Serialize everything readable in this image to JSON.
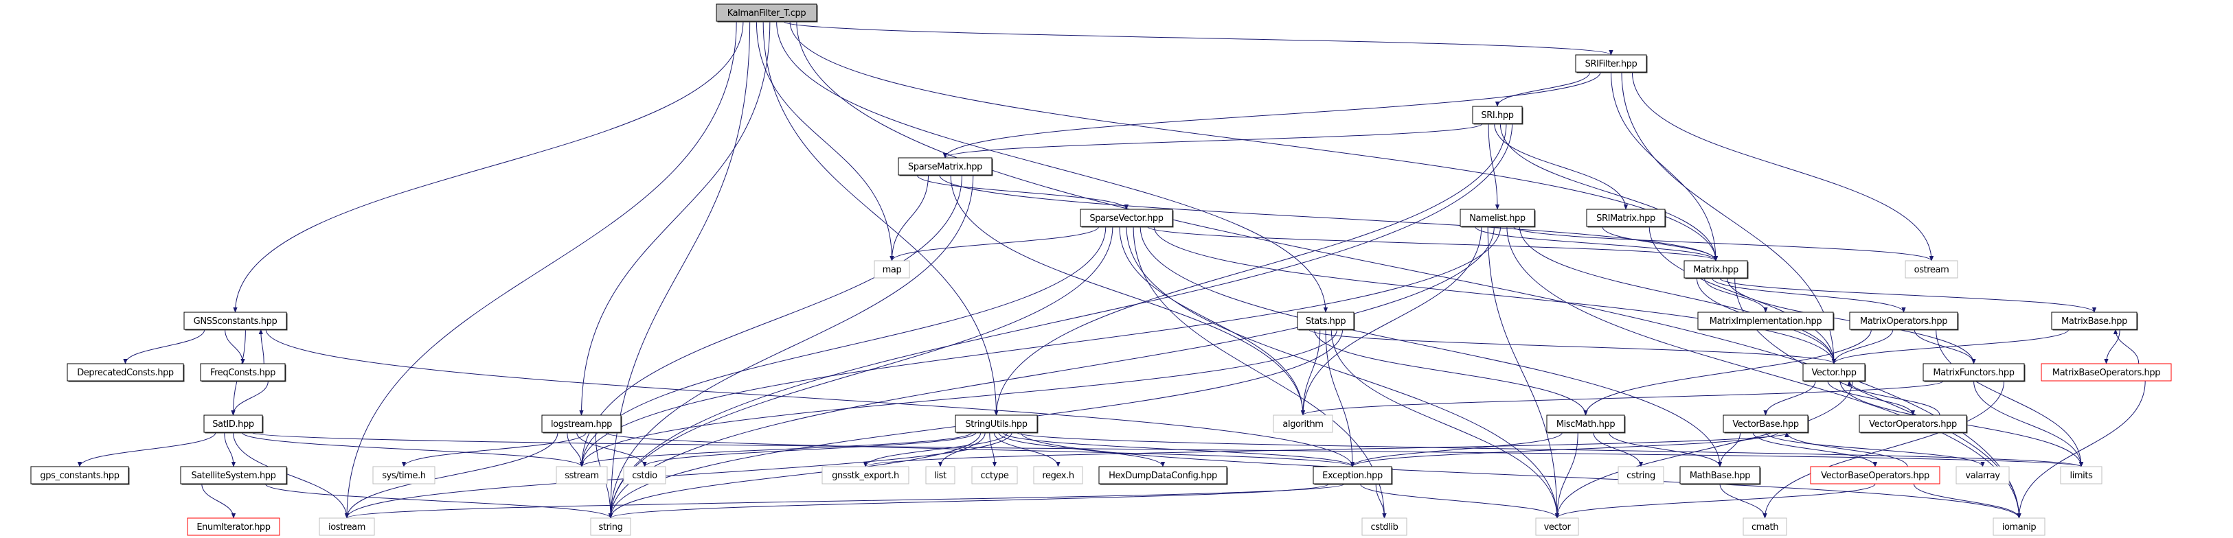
{
  "colors": {
    "edge": "#191970",
    "node_border": "#000000",
    "node_shadow": "#404040",
    "external_border": "#bfbfbf",
    "external_text": "#000000",
    "missing_border": "#ff0000",
    "root_fill": "#bfbfbf"
  },
  "nodes": [
    {
      "id": "kalman",
      "label": "KalmanFilter_T.cpp",
      "kind": "root"
    },
    {
      "id": "srifilter",
      "label": "SRIFilter.hpp",
      "kind": "normal"
    },
    {
      "id": "sri",
      "label": "SRI.hpp",
      "kind": "normal"
    },
    {
      "id": "sparsematrix",
      "label": "SparseMatrix.hpp",
      "kind": "normal"
    },
    {
      "id": "sparsevector",
      "label": "SparseVector.hpp",
      "kind": "normal"
    },
    {
      "id": "namelist",
      "label": "Namelist.hpp",
      "kind": "normal"
    },
    {
      "id": "srimatrix",
      "label": "SRIMatrix.hpp",
      "kind": "normal"
    },
    {
      "id": "matrix",
      "label": "Matrix.hpp",
      "kind": "normal"
    },
    {
      "id": "ostream",
      "label": "ostream",
      "kind": "external"
    },
    {
      "id": "map",
      "label": "map",
      "kind": "external"
    },
    {
      "id": "gnssconstants",
      "label": "GNSSconstants.hpp",
      "kind": "normal"
    },
    {
      "id": "stats",
      "label": "Stats.hpp",
      "kind": "normal"
    },
    {
      "id": "matriximpl",
      "label": "MatrixImplementation.hpp",
      "kind": "normal"
    },
    {
      "id": "matrixops",
      "label": "MatrixOperators.hpp",
      "kind": "normal"
    },
    {
      "id": "matrixbase",
      "label": "MatrixBase.hpp",
      "kind": "normal"
    },
    {
      "id": "deprecated",
      "label": "DeprecatedConsts.hpp",
      "kind": "normal"
    },
    {
      "id": "freqconsts",
      "label": "FreqConsts.hpp",
      "kind": "normal"
    },
    {
      "id": "vector_hpp",
      "label": "Vector.hpp",
      "kind": "normal"
    },
    {
      "id": "matrixfunctors",
      "label": "MatrixFunctors.hpp",
      "kind": "normal"
    },
    {
      "id": "matrixbaseops",
      "label": "MatrixBaseOperators.hpp",
      "kind": "missing"
    },
    {
      "id": "satid",
      "label": "SatID.hpp",
      "kind": "normal"
    },
    {
      "id": "logstream",
      "label": "logstream.hpp",
      "kind": "normal"
    },
    {
      "id": "stringutils",
      "label": "StringUtils.hpp",
      "kind": "normal"
    },
    {
      "id": "algorithm",
      "label": "algorithm",
      "kind": "external"
    },
    {
      "id": "miscmath",
      "label": "MiscMath.hpp",
      "kind": "normal"
    },
    {
      "id": "vectorbase",
      "label": "VectorBase.hpp",
      "kind": "normal"
    },
    {
      "id": "vectorops",
      "label": "VectorOperators.hpp",
      "kind": "normal"
    },
    {
      "id": "gps_constants",
      "label": "gps_constants.hpp",
      "kind": "normal"
    },
    {
      "id": "satsystem",
      "label": "SatelliteSystem.hpp",
      "kind": "normal"
    },
    {
      "id": "systime",
      "label": "sys/time.h",
      "kind": "external"
    },
    {
      "id": "sstream",
      "label": "sstream",
      "kind": "external"
    },
    {
      "id": "cstdio",
      "label": "cstdio",
      "kind": "external"
    },
    {
      "id": "gnsstk_export",
      "label": "gnsstk_export.h",
      "kind": "external"
    },
    {
      "id": "list",
      "label": "list",
      "kind": "external"
    },
    {
      "id": "cctype",
      "label": "cctype",
      "kind": "external"
    },
    {
      "id": "regex",
      "label": "regex.h",
      "kind": "external"
    },
    {
      "id": "hexdump",
      "label": "HexDumpDataConfig.hpp",
      "kind": "normal"
    },
    {
      "id": "exception",
      "label": "Exception.hpp",
      "kind": "normal"
    },
    {
      "id": "cstring",
      "label": "cstring",
      "kind": "external"
    },
    {
      "id": "mathbase",
      "label": "MathBase.hpp",
      "kind": "normal"
    },
    {
      "id": "vectorbaseops",
      "label": "VectorBaseOperators.hpp",
      "kind": "missing"
    },
    {
      "id": "valarray",
      "label": "valarray",
      "kind": "external"
    },
    {
      "id": "limits",
      "label": "limits",
      "kind": "external"
    },
    {
      "id": "enumiterator",
      "label": "EnumIterator.hpp",
      "kind": "missing"
    },
    {
      "id": "iostream",
      "label": "iostream",
      "kind": "external"
    },
    {
      "id": "string",
      "label": "string",
      "kind": "external"
    },
    {
      "id": "cstdlib",
      "label": "cstdlib",
      "kind": "external"
    },
    {
      "id": "vector",
      "label": "vector",
      "kind": "external"
    },
    {
      "id": "cmath",
      "label": "cmath",
      "kind": "external"
    },
    {
      "id": "iomanip",
      "label": "iomanip",
      "kind": "external"
    }
  ],
  "edges": [
    [
      "kalman",
      "iostream"
    ],
    [
      "kalman",
      "gnssconstants"
    ],
    [
      "kalman",
      "string"
    ],
    [
      "kalman",
      "map"
    ],
    [
      "kalman",
      "stringutils"
    ],
    [
      "kalman",
      "logstream"
    ],
    [
      "kalman",
      "stats"
    ],
    [
      "kalman",
      "srifilter"
    ],
    [
      "kalman",
      "matrix"
    ],
    [
      "kalman",
      "iomanip"
    ],
    [
      "srifilter",
      "sri"
    ],
    [
      "srifilter",
      "sparsematrix"
    ],
    [
      "srifilter",
      "matrix"
    ],
    [
      "srifilter",
      "vector_hpp"
    ],
    [
      "srifilter",
      "ostream"
    ],
    [
      "sri",
      "sparsematrix"
    ],
    [
      "sri",
      "namelist"
    ],
    [
      "sri",
      "srimatrix"
    ],
    [
      "sri",
      "matrix"
    ],
    [
      "sri",
      "stringutils"
    ],
    [
      "sri",
      "string"
    ],
    [
      "sparsematrix",
      "sparsevector"
    ],
    [
      "sparsematrix",
      "map"
    ],
    [
      "sparsematrix",
      "matrix"
    ],
    [
      "sparsematrix",
      "algorithm"
    ],
    [
      "sparsematrix",
      "sstream"
    ],
    [
      "sparsematrix",
      "string"
    ],
    [
      "sparsevector",
      "map"
    ],
    [
      "sparsevector",
      "sstream"
    ],
    [
      "sparsevector",
      "string"
    ],
    [
      "sparsevector",
      "algorithm"
    ],
    [
      "sparsevector",
      "vector"
    ],
    [
      "sparsevector",
      "cstdlib"
    ],
    [
      "sparsevector",
      "mathbase"
    ],
    [
      "sparsevector",
      "matrix"
    ],
    [
      "sparsevector",
      "vector_hpp"
    ],
    [
      "namelist",
      "matrix"
    ],
    [
      "namelist",
      "algorithm"
    ],
    [
      "namelist",
      "vector"
    ],
    [
      "namelist",
      "string"
    ],
    [
      "namelist",
      "sstream"
    ],
    [
      "namelist",
      "iomanip"
    ],
    [
      "namelist",
      "ostream"
    ],
    [
      "namelist",
      "vector_hpp"
    ],
    [
      "srimatrix",
      "matrix"
    ],
    [
      "srimatrix",
      "vector_hpp"
    ],
    [
      "matrix",
      "vector_hpp"
    ],
    [
      "matrix",
      "matriximpl"
    ],
    [
      "matrix",
      "matrixops"
    ],
    [
      "matrix",
      "matrixbase"
    ],
    [
      "matrix",
      "matrixfunctors"
    ],
    [
      "matrix",
      "iomanip"
    ],
    [
      "matrixops",
      "miscmath"
    ],
    [
      "matrixops",
      "vector_hpp"
    ],
    [
      "matrixops",
      "matrixfunctors"
    ],
    [
      "matrixops",
      "limits"
    ],
    [
      "matrixbase",
      "vector_hpp"
    ],
    [
      "matrixbase",
      "matrixbaseops"
    ],
    [
      "matrixbaseops",
      "matrixbase"
    ],
    [
      "matrixbaseops",
      "iomanip"
    ],
    [
      "matrixfunctors",
      "algorithm"
    ],
    [
      "matrixfunctors",
      "limits"
    ],
    [
      "matrixfunctors",
      "cmath"
    ],
    [
      "vector_hpp",
      "vectorbase"
    ],
    [
      "vector_hpp",
      "vectorops"
    ],
    [
      "vector_hpp",
      "limits"
    ],
    [
      "vector_hpp",
      "vector"
    ],
    [
      "vectorops",
      "vector_hpp"
    ],
    [
      "vectorbase",
      "mathbase"
    ],
    [
      "vectorbase",
      "vectorbaseops"
    ],
    [
      "vectorbase",
      "valarray"
    ],
    [
      "vectorbase",
      "exception"
    ],
    [
      "vectorbase",
      "gnsstk_export"
    ],
    [
      "vectorbaseops",
      "vectorbase"
    ],
    [
      "vectorbaseops",
      "vector"
    ],
    [
      "vectorbaseops",
      "iomanip"
    ],
    [
      "mathbase",
      "cmath"
    ],
    [
      "miscmath",
      "exception"
    ],
    [
      "miscmath",
      "vector"
    ],
    [
      "miscmath",
      "cstring"
    ],
    [
      "miscmath",
      "mathbase"
    ],
    [
      "stats",
      "vector_hpp"
    ],
    [
      "stats",
      "miscmath"
    ],
    [
      "stats",
      "algorithm"
    ],
    [
      "stats",
      "exception"
    ],
    [
      "stats",
      "vector"
    ],
    [
      "stats",
      "sstream"
    ],
    [
      "stats",
      "string"
    ],
    [
      "stringutils",
      "sstream"
    ],
    [
      "stringutils",
      "cstdio"
    ],
    [
      "stringutils",
      "string"
    ],
    [
      "stringutils",
      "list"
    ],
    [
      "stringutils",
      "cctype"
    ],
    [
      "stringutils",
      "regex"
    ],
    [
      "stringutils",
      "hexdump"
    ],
    [
      "stringutils",
      "exception"
    ],
    [
      "stringutils",
      "gnsstk_export"
    ],
    [
      "stringutils",
      "iostream"
    ],
    [
      "stringutils",
      "limits"
    ],
    [
      "stringutils",
      "iomanip"
    ],
    [
      "exception",
      "string"
    ],
    [
      "exception",
      "iostream"
    ],
    [
      "exception",
      "vector"
    ],
    [
      "exception",
      "cstdlib"
    ],
    [
      "gnssconstants",
      "deprecated"
    ],
    [
      "gnssconstants",
      "freqconsts"
    ],
    [
      "gnssconstants",
      "satid"
    ],
    [
      "gnssconstants",
      "exception"
    ],
    [
      "freqconsts",
      "gnssconstants"
    ],
    [
      "freqconsts",
      "satid"
    ],
    [
      "satid",
      "gps_constants"
    ],
    [
      "satid",
      "satsystem"
    ],
    [
      "satid",
      "iostream"
    ],
    [
      "satid",
      "sstream"
    ],
    [
      "satid",
      "limits"
    ],
    [
      "satsystem",
      "enumiterator"
    ],
    [
      "satsystem",
      "string"
    ],
    [
      "logstream",
      "iostream"
    ],
    [
      "logstream",
      "sstream"
    ],
    [
      "logstream",
      "cstdio"
    ],
    [
      "logstream",
      "systime"
    ],
    [
      "logstream",
      "string"
    ],
    [
      "logstream",
      "exception"
    ]
  ]
}
